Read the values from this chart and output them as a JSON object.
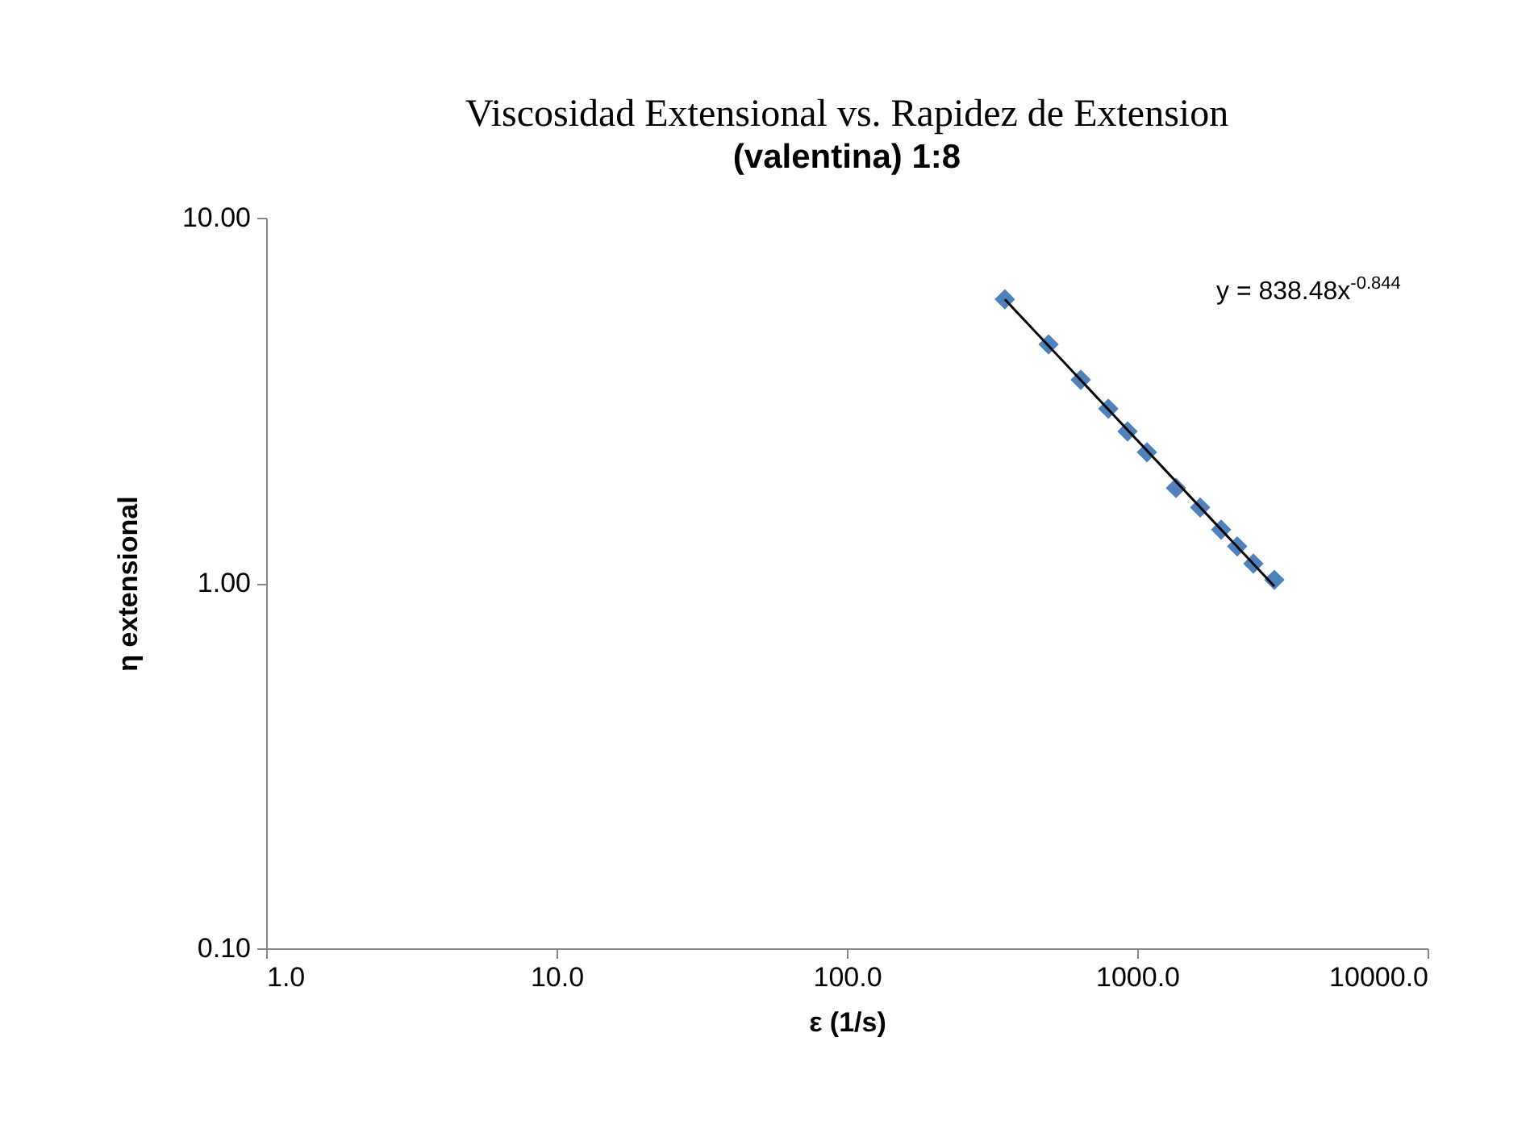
{
  "chart_data": {
    "type": "scatter",
    "title": "Viscosidad Extensional vs. Rapidez de Extension",
    "subtitle": "(valentina) 1:8",
    "xlabel": "ε (1/s)",
    "ylabel": "η extensional",
    "log": "xy",
    "grid": false,
    "marker": "diamond",
    "xlim": [
      1,
      10000
    ],
    "xticks": [
      {
        "value": 1,
        "label": "1.0"
      },
      {
        "value": 10,
        "label": "10.0"
      },
      {
        "value": 100,
        "label": "100.0"
      },
      {
        "value": 1000,
        "label": "1000.0"
      },
      {
        "value": 10000,
        "label": "10000.0"
      }
    ],
    "ylim": [
      0.1,
      10
    ],
    "yticks": [
      {
        "value": 0.1,
        "label": "0.10"
      },
      {
        "value": 1,
        "label": "1.00"
      },
      {
        "value": 10,
        "label": "10.00"
      }
    ],
    "annotations": [
      "y = 838.48x$^{-0.844}$"
    ],
    "series": [
      {
        "type": "scatter",
        "color": "#4f81bd",
        "x": [
          350,
          495,
          639,
          795,
          926,
          1080,
          1360,
          1647,
          1945,
          2210,
          2512,
          2966
        ],
        "values": [
          5.98,
          4.5,
          3.6,
          3.0,
          2.6,
          2.28,
          1.82,
          1.61,
          1.4,
          1.26,
          1.13,
          1.02
        ]
      },
      {
        "type": "line",
        "color": "#000000",
        "line_style": "solid",
        "marker": "none",
        "x": [
          350,
          2966
        ],
        "values": [
          5.98,
          0.98
        ]
      }
    ]
  }
}
